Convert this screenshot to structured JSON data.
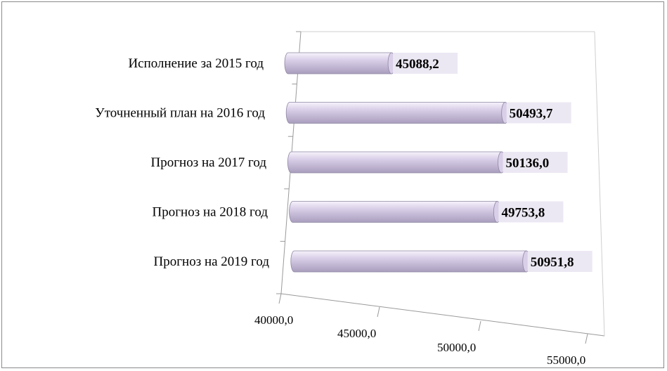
{
  "chart_data": {
    "type": "bar",
    "orientation": "horizontal",
    "style": "3d-cylinder",
    "categories": [
      "Исполнение за 2015 год",
      "Уточненный план на 2016 год",
      "Прогноз на 2017 год",
      "Прогноз на 2018 год",
      "Прогноз на 2019 год"
    ],
    "values": [
      45088.2,
      50493.7,
      50136.0,
      49753.8,
      50951.8
    ],
    "value_labels": [
      "45088,2",
      "50493,7",
      "50136,0",
      "49753,8",
      "50951,8"
    ],
    "xlim": [
      40000,
      55000
    ],
    "x_ticks": [
      "40000,0",
      "45000,0",
      "50000,0",
      "55000,0"
    ],
    "bar_color": "#d9cfe8",
    "bar_highlight": "#f6f2fb",
    "bar_shadow": "#a99dbd",
    "label_box_color": "#ece8f3",
    "grid": false,
    "legend": false
  }
}
